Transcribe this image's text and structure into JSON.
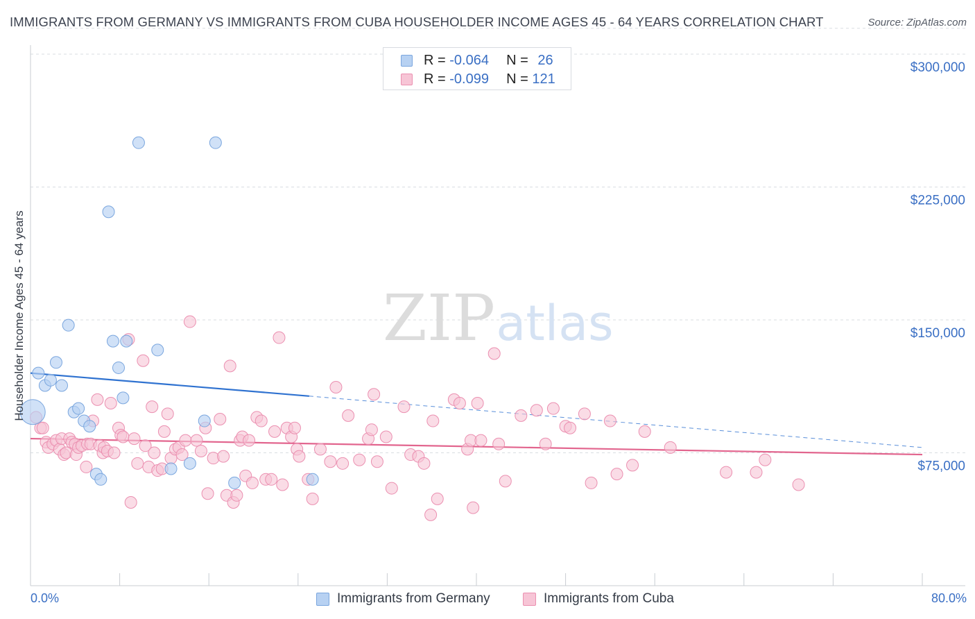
{
  "title": "IMMIGRANTS FROM GERMANY VS IMMIGRANTS FROM CUBA HOUSEHOLDER INCOME AGES 45 - 64 YEARS CORRELATION CHART",
  "source": "Source: ZipAtlas.com",
  "watermark": {
    "zip": "ZIP",
    "atlas": "atlas"
  },
  "stats": {
    "germany": {
      "r_label": "R =",
      "r": "-0.064",
      "n_label": "N =",
      "n": "26"
    },
    "cuba": {
      "r_label": "R =",
      "r": "-0.099",
      "n_label": "N =",
      "n": "121"
    }
  },
  "legend": {
    "germany": "Immigrants from Germany",
    "cuba": "Immigrants from Cuba"
  },
  "colors": {
    "germany_fill": "#b7d1f2",
    "germany_stroke": "#7aa6de",
    "germany_line": "#2f72d0",
    "cuba_fill": "#f7c5d6",
    "cuba_stroke": "#eb8fb0",
    "cuba_line": "#e2658e",
    "tick_text": "#3a6fc4",
    "grid": "#d9dde2"
  },
  "chart_data": {
    "type": "scatter",
    "title": "IMMIGRANTS FROM GERMANY VS IMMIGRANTS FROM CUBA HOUSEHOLDER INCOME AGES 45 - 64 YEARS CORRELATION CHART",
    "xlabel": "",
    "ylabel": "Householder Income Ages 45 - 64 years",
    "xlim": [
      0,
      80
    ],
    "ylim": [
      0,
      315000
    ],
    "x_tick_labels": [
      "0.0%",
      "80.0%"
    ],
    "y_ticks": [
      75000,
      150000,
      225000,
      300000
    ],
    "y_tick_labels": [
      "$75,000",
      "$150,000",
      "$225,000",
      "$300,000"
    ],
    "series": [
      {
        "name": "Immigrants from Germany",
        "r": -0.064,
        "n": 26,
        "trend": {
          "x_solid": [
            0,
            25
          ],
          "y_solid": [
            120000,
            107000
          ],
          "x_dashed": [
            25,
            80
          ],
          "y_dashed": [
            107000,
            78000
          ]
        },
        "points": [
          {
            "x": 0.2,
            "y": 98000,
            "big": true
          },
          {
            "x": 0.7,
            "y": 120000
          },
          {
            "x": 1.3,
            "y": 113000
          },
          {
            "x": 1.8,
            "y": 116000
          },
          {
            "x": 2.3,
            "y": 126000
          },
          {
            "x": 2.8,
            "y": 113000
          },
          {
            "x": 3.4,
            "y": 147000
          },
          {
            "x": 3.9,
            "y": 98000
          },
          {
            "x": 4.3,
            "y": 100000
          },
          {
            "x": 4.8,
            "y": 93000
          },
          {
            "x": 5.3,
            "y": 90000
          },
          {
            "x": 5.9,
            "y": 63000
          },
          {
            "x": 6.3,
            "y": 60000
          },
          {
            "x": 7.0,
            "y": 211000
          },
          {
            "x": 7.4,
            "y": 138000
          },
          {
            "x": 7.9,
            "y": 123000
          },
          {
            "x": 8.3,
            "y": 106000
          },
          {
            "x": 8.6,
            "y": 138000
          },
          {
            "x": 9.7,
            "y": 250000
          },
          {
            "x": 11.4,
            "y": 133000
          },
          {
            "x": 12.6,
            "y": 66000
          },
          {
            "x": 14.3,
            "y": 69000
          },
          {
            "x": 15.6,
            "y": 93000
          },
          {
            "x": 16.6,
            "y": 250000
          },
          {
            "x": 18.3,
            "y": 58000
          },
          {
            "x": 25.3,
            "y": 60000
          }
        ]
      },
      {
        "name": "Immigrants from Cuba",
        "r": -0.099,
        "n": 121,
        "trend": {
          "x_solid": [
            0,
            80
          ],
          "y_solid": [
            83000,
            74000
          ]
        },
        "points": [
          {
            "x": 0.5,
            "y": 95000
          },
          {
            "x": 0.9,
            "y": 89000
          },
          {
            "x": 1.1,
            "y": 89000
          },
          {
            "x": 1.4,
            "y": 81000
          },
          {
            "x": 1.6,
            "y": 78000
          },
          {
            "x": 2.0,
            "y": 80000
          },
          {
            "x": 2.3,
            "y": 82000
          },
          {
            "x": 2.6,
            "y": 77000
          },
          {
            "x": 2.8,
            "y": 83000
          },
          {
            "x": 3.0,
            "y": 74000
          },
          {
            "x": 3.2,
            "y": 75000
          },
          {
            "x": 3.5,
            "y": 83000
          },
          {
            "x": 3.7,
            "y": 81000
          },
          {
            "x": 4.0,
            "y": 80000
          },
          {
            "x": 4.1,
            "y": 74000
          },
          {
            "x": 4.3,
            "y": 78000
          },
          {
            "x": 4.6,
            "y": 79000
          },
          {
            "x": 5.0,
            "y": 67000
          },
          {
            "x": 5.1,
            "y": 80000
          },
          {
            "x": 5.4,
            "y": 80000
          },
          {
            "x": 5.6,
            "y": 93000
          },
          {
            "x": 6.0,
            "y": 105000
          },
          {
            "x": 6.2,
            "y": 79000
          },
          {
            "x": 6.5,
            "y": 75000
          },
          {
            "x": 6.6,
            "y": 78000
          },
          {
            "x": 6.9,
            "y": 76000
          },
          {
            "x": 7.2,
            "y": 103000
          },
          {
            "x": 7.5,
            "y": 75000
          },
          {
            "x": 7.9,
            "y": 89000
          },
          {
            "x": 8.1,
            "y": 85000
          },
          {
            "x": 8.3,
            "y": 84000
          },
          {
            "x": 8.8,
            "y": 139000
          },
          {
            "x": 9.0,
            "y": 47000
          },
          {
            "x": 9.3,
            "y": 83000
          },
          {
            "x": 9.6,
            "y": 69000
          },
          {
            "x": 10.1,
            "y": 127000
          },
          {
            "x": 10.3,
            "y": 79000
          },
          {
            "x": 10.6,
            "y": 67000
          },
          {
            "x": 10.9,
            "y": 101000
          },
          {
            "x": 11.1,
            "y": 75000
          },
          {
            "x": 11.4,
            "y": 65000
          },
          {
            "x": 11.8,
            "y": 66000
          },
          {
            "x": 12.0,
            "y": 87000
          },
          {
            "x": 12.3,
            "y": 97000
          },
          {
            "x": 12.6,
            "y": 72000
          },
          {
            "x": 13.0,
            "y": 77000
          },
          {
            "x": 13.3,
            "y": 78000
          },
          {
            "x": 13.6,
            "y": 74000
          },
          {
            "x": 13.9,
            "y": 82000
          },
          {
            "x": 14.3,
            "y": 149000
          },
          {
            "x": 14.9,
            "y": 82000
          },
          {
            "x": 15.3,
            "y": 76000
          },
          {
            "x": 15.7,
            "y": 89000
          },
          {
            "x": 15.9,
            "y": 52000
          },
          {
            "x": 16.4,
            "y": 72000
          },
          {
            "x": 17.0,
            "y": 94000
          },
          {
            "x": 17.3,
            "y": 73000
          },
          {
            "x": 17.6,
            "y": 51000
          },
          {
            "x": 17.9,
            "y": 124000
          },
          {
            "x": 18.2,
            "y": 47000
          },
          {
            "x": 18.5,
            "y": 51000
          },
          {
            "x": 18.8,
            "y": 82000
          },
          {
            "x": 19.0,
            "y": 84000
          },
          {
            "x": 19.3,
            "y": 62000
          },
          {
            "x": 19.6,
            "y": 82000
          },
          {
            "x": 19.9,
            "y": 58000
          },
          {
            "x": 20.3,
            "y": 95000
          },
          {
            "x": 20.7,
            "y": 93000
          },
          {
            "x": 21.1,
            "y": 60000
          },
          {
            "x": 21.6,
            "y": 60000
          },
          {
            "x": 21.9,
            "y": 87000
          },
          {
            "x": 22.3,
            "y": 140000
          },
          {
            "x": 22.6,
            "y": 57000
          },
          {
            "x": 23.0,
            "y": 89000
          },
          {
            "x": 23.4,
            "y": 84000
          },
          {
            "x": 23.7,
            "y": 89000
          },
          {
            "x": 23.9,
            "y": 77000
          },
          {
            "x": 24.1,
            "y": 73000
          },
          {
            "x": 24.9,
            "y": 60000
          },
          {
            "x": 25.3,
            "y": 49000
          },
          {
            "x": 26.0,
            "y": 77000
          },
          {
            "x": 26.9,
            "y": 70000
          },
          {
            "x": 27.4,
            "y": 112000
          },
          {
            "x": 28.0,
            "y": 69000
          },
          {
            "x": 28.5,
            "y": 96000
          },
          {
            "x": 29.5,
            "y": 71000
          },
          {
            "x": 30.3,
            "y": 83000
          },
          {
            "x": 30.6,
            "y": 88000
          },
          {
            "x": 30.8,
            "y": 108000
          },
          {
            "x": 31.1,
            "y": 70000
          },
          {
            "x": 31.9,
            "y": 84000
          },
          {
            "x": 32.4,
            "y": 55000
          },
          {
            "x": 33.5,
            "y": 101000
          },
          {
            "x": 34.1,
            "y": 74000
          },
          {
            "x": 34.8,
            "y": 73000
          },
          {
            "x": 35.3,
            "y": 69000
          },
          {
            "x": 35.9,
            "y": 40000
          },
          {
            "x": 36.1,
            "y": 93000
          },
          {
            "x": 36.5,
            "y": 49000
          },
          {
            "x": 38.0,
            "y": 105000
          },
          {
            "x": 38.5,
            "y": 103000
          },
          {
            "x": 39.2,
            "y": 77000
          },
          {
            "x": 39.5,
            "y": 82000
          },
          {
            "x": 39.7,
            "y": 44000
          },
          {
            "x": 40.1,
            "y": 103000
          },
          {
            "x": 40.4,
            "y": 82000
          },
          {
            "x": 41.6,
            "y": 131000
          },
          {
            "x": 42.0,
            "y": 80000
          },
          {
            "x": 42.6,
            "y": 59000
          },
          {
            "x": 44.0,
            "y": 96000
          },
          {
            "x": 45.4,
            "y": 99000
          },
          {
            "x": 46.2,
            "y": 80000
          },
          {
            "x": 46.9,
            "y": 100000
          },
          {
            "x": 48.0,
            "y": 90000
          },
          {
            "x": 48.4,
            "y": 89000
          },
          {
            "x": 49.7,
            "y": 97000
          },
          {
            "x": 50.3,
            "y": 58000
          },
          {
            "x": 52.0,
            "y": 93000
          },
          {
            "x": 52.6,
            "y": 63000
          },
          {
            "x": 54.0,
            "y": 68000
          },
          {
            "x": 55.1,
            "y": 87000
          },
          {
            "x": 57.4,
            "y": 78000
          },
          {
            "x": 62.4,
            "y": 64000
          },
          {
            "x": 65.1,
            "y": 64000
          },
          {
            "x": 65.9,
            "y": 71000
          },
          {
            "x": 68.9,
            "y": 57000
          }
        ]
      }
    ]
  }
}
